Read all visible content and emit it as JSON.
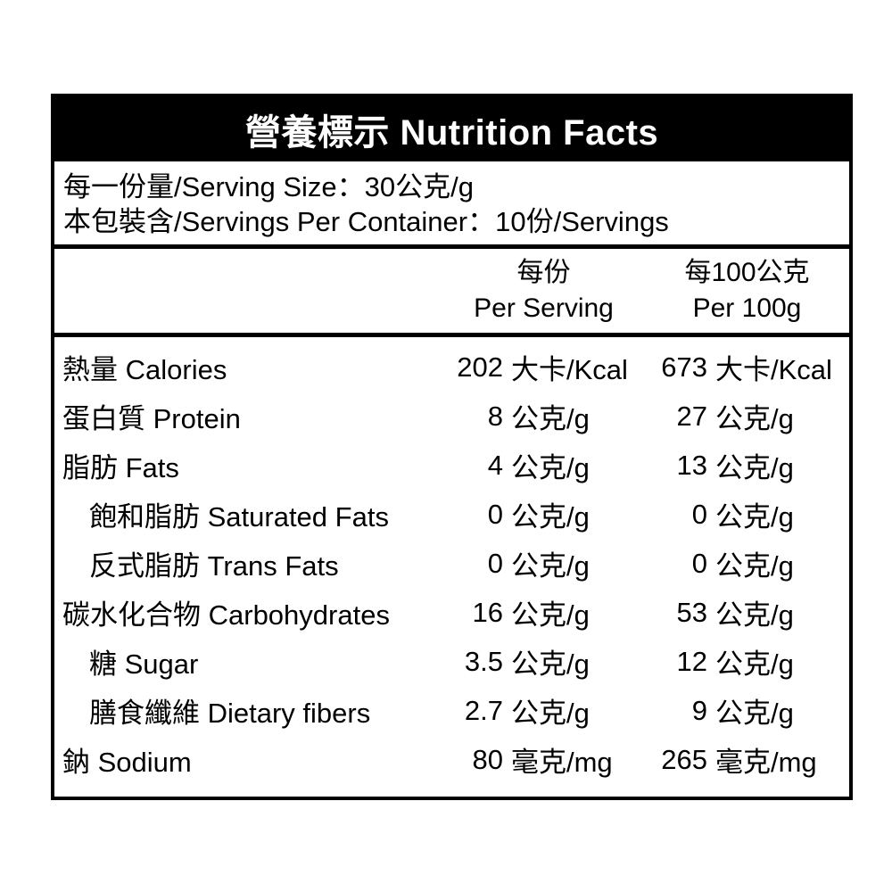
{
  "title": "營養標示 Nutrition Facts",
  "serving_info": {
    "line1": "每一份量/Serving Size：30公克/g",
    "line2": "本包裝含/Servings Per Container：10份/Servings"
  },
  "columns": [
    {
      "zh": "每份",
      "en": "Per Serving"
    },
    {
      "zh": "每100公克",
      "en": "Per 100g"
    }
  ],
  "rows": [
    {
      "label": "熱量 Calories",
      "per_serving": {
        "value": "202",
        "unit": "大卡/Kcal"
      },
      "per_100g": {
        "value": "673",
        "unit": "大卡/Kcal"
      }
    },
    {
      "label": "蛋白質 Protein",
      "per_serving": {
        "value": "8",
        "unit": "公克/g"
      },
      "per_100g": {
        "value": "27",
        "unit": "公克/g"
      }
    },
    {
      "label": "脂肪 Fats",
      "per_serving": {
        "value": "4",
        "unit": "公克/g"
      },
      "per_100g": {
        "value": "13",
        "unit": "公克/g"
      }
    },
    {
      "label": "飽和脂肪 Saturated Fats",
      "per_serving": {
        "value": "0",
        "unit": "公克/g"
      },
      "per_100g": {
        "value": "0",
        "unit": "公克/g"
      }
    },
    {
      "label": "反式脂肪 Trans Fats",
      "per_serving": {
        "value": "0",
        "unit": "公克/g"
      },
      "per_100g": {
        "value": "0",
        "unit": "公克/g"
      }
    },
    {
      "label": "碳水化合物 Carbohydrates",
      "per_serving": {
        "value": "16",
        "unit": "公克/g"
      },
      "per_100g": {
        "value": "53",
        "unit": "公克/g"
      }
    },
    {
      "label": "糖 Sugar",
      "per_serving": {
        "value": "3.5",
        "unit": "公克/g"
      },
      "per_100g": {
        "value": "12",
        "unit": "公克/g"
      }
    },
    {
      "label": "膳食纖維 Dietary fibers",
      "per_serving": {
        "value": "2.7",
        "unit": "公克/g"
      },
      "per_100g": {
        "value": "9",
        "unit": "公克/g"
      }
    },
    {
      "label": "鈉 Sodium",
      "per_serving": {
        "value": "80",
        "unit": "毫克/mg"
      },
      "per_100g": {
        "value": "265",
        "unit": "毫克/mg"
      }
    }
  ]
}
